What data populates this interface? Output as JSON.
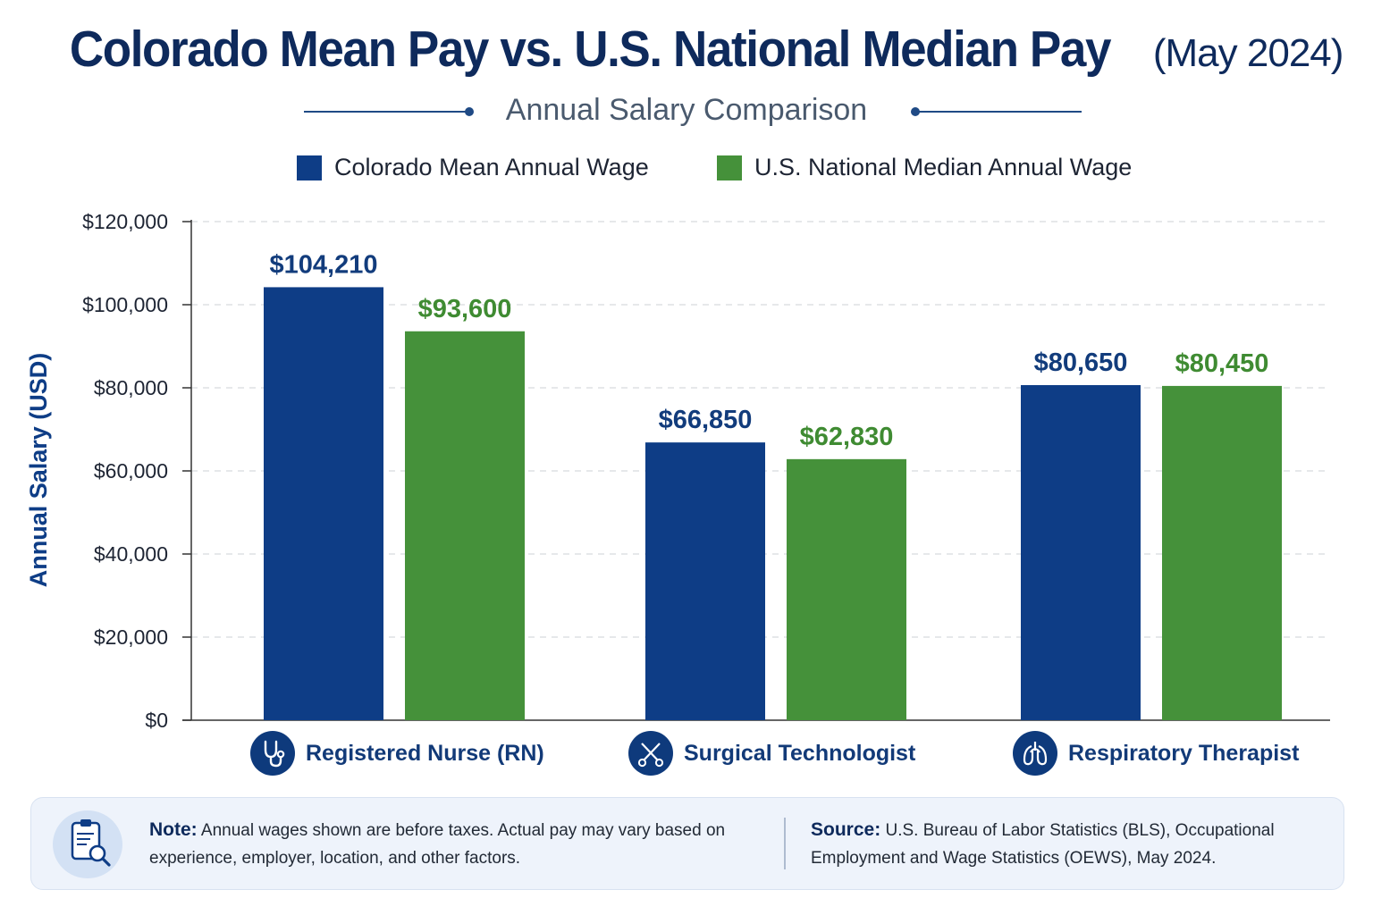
{
  "header": {
    "title_main": "Colorado Mean Pay vs. U.S. National Median Pay",
    "title_suffix": "(May 2024)",
    "subtitle": "Annual Salary Comparison"
  },
  "legend": {
    "colorado_label": "Colorado Mean Annual Wage",
    "national_label": "U.S. National Median Annual Wage"
  },
  "colors": {
    "colorado": "#0e3d86",
    "national": "#45913a",
    "colorado_label": "#123c7c",
    "national_label": "#3f8b32"
  },
  "chart_data": {
    "type": "bar",
    "title": "Colorado Mean Pay vs. U.S. National Median Pay (May 2024)",
    "subtitle": "Annual Salary Comparison",
    "categories": [
      "Registered Nurse (RN)",
      "Surgical Technologist",
      "Respiratory Therapist"
    ],
    "series": [
      {
        "name": "Colorado Mean Annual Wage",
        "values": [
          104210,
          66850,
          80650
        ],
        "labels": [
          "$104,210",
          "$66,850",
          "$80,650"
        ]
      },
      {
        "name": "U.S. National Median Annual Wage",
        "values": [
          93600,
          62830,
          80450
        ],
        "labels": [
          "$93,600",
          "$62,830",
          "$80,450"
        ]
      }
    ],
    "xlabel": "",
    "ylabel": "Annual Salary (USD)",
    "ylim": [
      0,
      120000
    ],
    "yticks": [
      0,
      20000,
      40000,
      60000,
      80000,
      100000,
      120000
    ],
    "ytick_labels": [
      "$0",
      "$20,000",
      "$40,000",
      "$60,000",
      "$80,000",
      "$100,000",
      "$120,000"
    ],
    "grid": true,
    "legend_position": "top"
  },
  "categories": {
    "rn_icon": "stethoscope-icon",
    "surg_icon": "scissors-icon",
    "resp_icon": "lungs-icon"
  },
  "note": {
    "label": "Note:",
    "text": "Annual wages shown are before taxes. Actual pay may vary based on experience, employer, location, and other factors.",
    "icon": "clipboard-search-icon"
  },
  "source": {
    "label": "Source:",
    "text": "U.S. Bureau of Labor Statistics (BLS), Occupational Employment and Wage Statistics (OEWS), May 2024."
  }
}
